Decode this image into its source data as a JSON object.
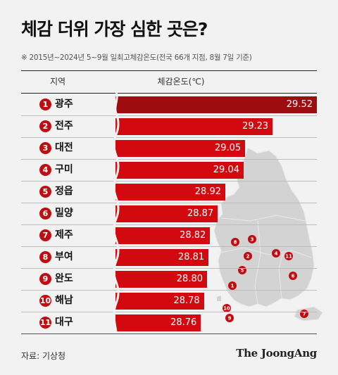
{
  "title": "체감 더위 가장 심한 곳은?",
  "subtitle": "※ 2015년~2024년 5~9월 일최고체감온도(전국 66개 지점, 8월 7일 기준)",
  "columns": {
    "region": "지역",
    "value": "체감온도(℃)"
  },
  "source": "자료: 기상청",
  "brand": "The JoongAng",
  "colors": {
    "bar": "#d20a0f",
    "bar_top": "#9c0c10",
    "badge": "#c00d12",
    "map": "#d3d3d3"
  },
  "chart_data": {
    "type": "bar",
    "orientation": "horizontal",
    "title": "체감 더위 가장 심한 곳은?",
    "xlabel": "체감온도(℃)",
    "ylabel": "지역",
    "categories": [
      "광주",
      "전주",
      "대전",
      "구미",
      "정읍",
      "밀양",
      "제주",
      "부여",
      "완도",
      "해남",
      "대구"
    ],
    "ranks": [
      "1",
      "2",
      "3",
      "4",
      "5",
      "6",
      "7",
      "8",
      "9",
      "10",
      "11"
    ],
    "values": [
      29.52,
      29.23,
      29.05,
      29.04,
      28.92,
      28.87,
      28.82,
      28.81,
      28.8,
      28.78,
      28.76
    ],
    "value_labels": [
      "29.52",
      "29.23",
      "29.05",
      "29.04",
      "28.92",
      "28.87",
      "28.82",
      "28.81",
      "28.80",
      "28.78",
      "28.76"
    ],
    "xlim": [
      28.2,
      29.52
    ],
    "axis_break": true,
    "grid": false,
    "legend": "none"
  },
  "map_markers": [
    "1",
    "2",
    "3",
    "4",
    "5",
    "6",
    "7",
    "8",
    "9",
    "10",
    "11"
  ]
}
